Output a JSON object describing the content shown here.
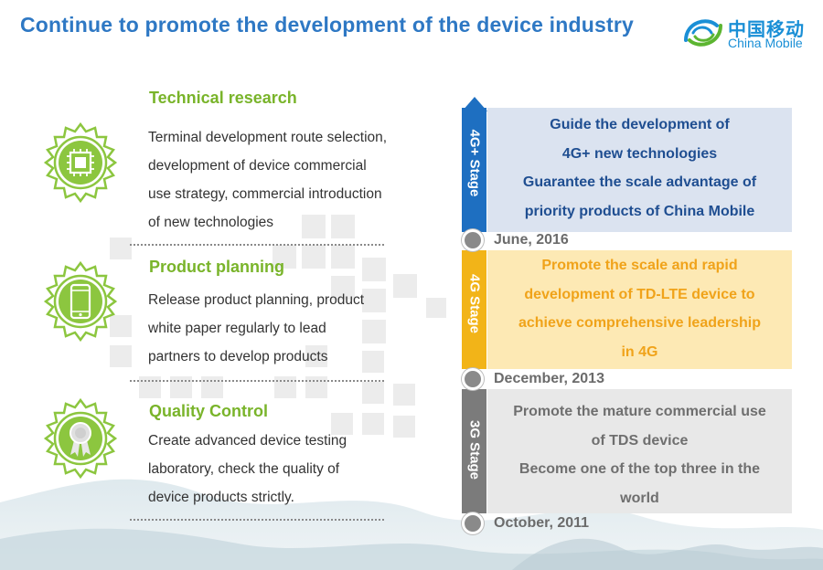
{
  "title": "Continue to promote the development of the device industry",
  "logo": {
    "cn": "中国移动",
    "en": "China Mobile"
  },
  "sections": [
    {
      "heading": "Technical  research",
      "icon": "chip-icon",
      "lines": [
        "Terminal development route selection,",
        "development of device commercial",
        "use strategy, commercial  introduction",
        "of new technologies"
      ]
    },
    {
      "heading": "Product  planning",
      "icon": "smartphone-icon",
      "lines": [
        "Release product planning, product",
        "white paper regularly to lead",
        "partners to develop products"
      ]
    },
    {
      "heading": "Quality  Control",
      "icon": "award-ribbon-icon",
      "lines": [
        "Create advanced device testing",
        "laboratory, check the quality  of",
        "device products strictly."
      ]
    }
  ],
  "stages": [
    {
      "label": "4G+ Stage",
      "color": "#1e6fc1",
      "box_bg": "#dbe3f0",
      "text_color": "#1f4e91",
      "lines": [
        "Guide the development of",
        "4G+ new technologies",
        "Guarantee the scale advantage of",
        "priority products of China Mobile"
      ]
    },
    {
      "label": "4G Stage",
      "color": "#f2b418",
      "box_bg": "#fde9b4",
      "text_color": "#f0a31a",
      "lines": [
        "Promote the scale and rapid",
        "development of TD-LTE device to",
        "achieve comprehensive leadership",
        "in 4G"
      ]
    },
    {
      "label": "3G Stage",
      "color": "#7b7b7b",
      "box_bg": "#e8e8e8",
      "text_color": "#6f6f6f",
      "lines": [
        "Promote the mature commercial use",
        "of TDS device",
        "Become one of the top three in the",
        "world"
      ]
    }
  ],
  "dates": [
    "June, 2016",
    "December,  2013",
    "October,  2011"
  ]
}
